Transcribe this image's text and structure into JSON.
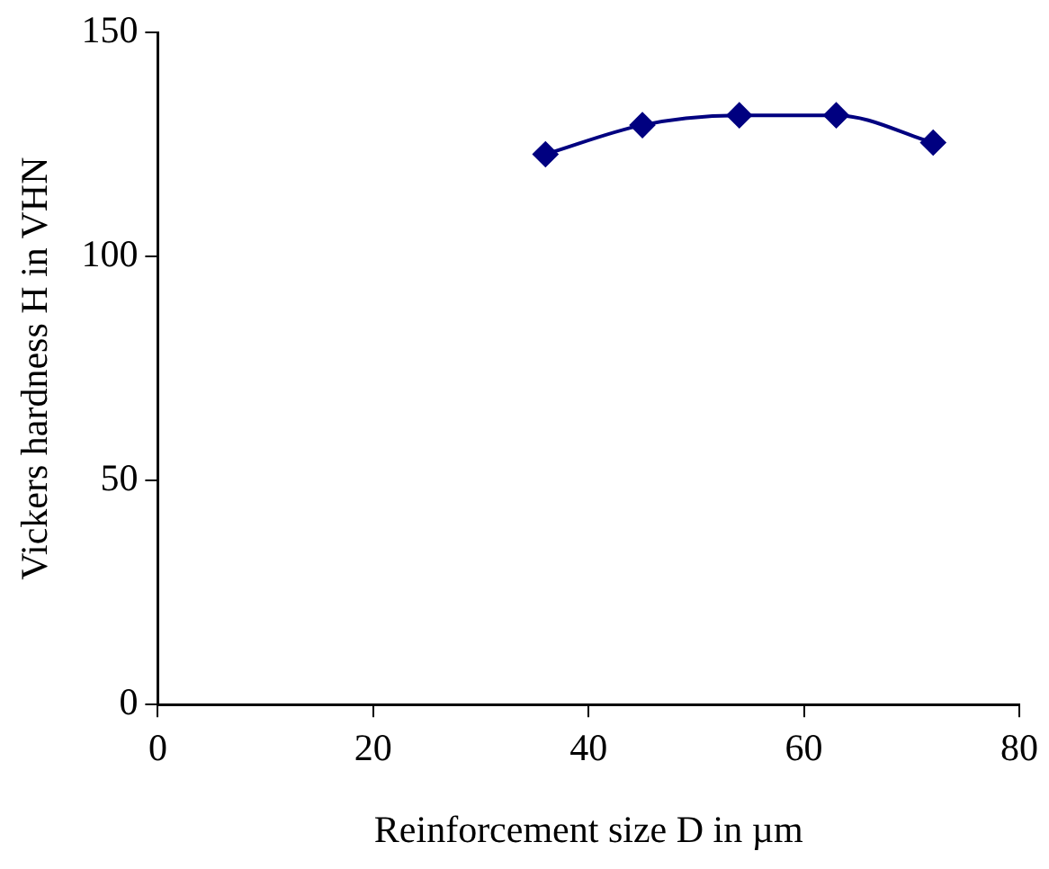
{
  "chart_data": {
    "type": "line",
    "xlabel": "Reinforcement size D in µm",
    "ylabel": "Vickers hardness H in VHN",
    "x": [
      36,
      45,
      54,
      63,
      72
    ],
    "series": [
      {
        "color": "#000080",
        "values": [
          122.8,
          129.3,
          131.5,
          131.5,
          125.4
        ]
      }
    ],
    "xlim": [
      0,
      80
    ],
    "xticks": [
      0,
      20,
      40,
      60,
      80
    ],
    "ylim": [
      0,
      150
    ],
    "yticks": [
      0,
      50,
      100,
      150
    ],
    "marker": "diamond",
    "line_style": "solid",
    "grid": false,
    "legend": false
  }
}
